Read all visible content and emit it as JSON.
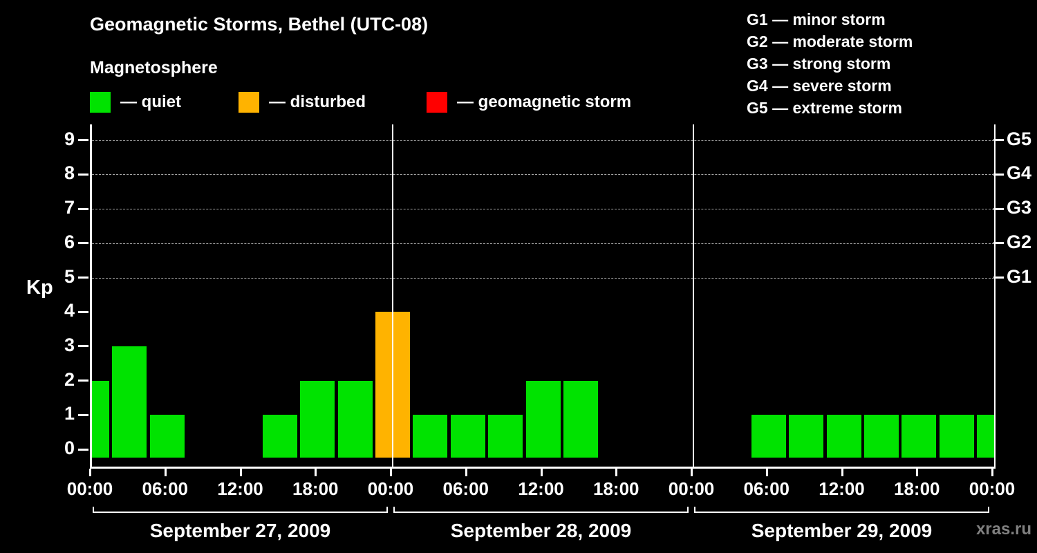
{
  "title": "Geomagnetic Storms, Bethel (UTC-08)",
  "subtitle": "Magnetosphere",
  "watermark": "xras.ru",
  "colors": {
    "quiet": "#00e300",
    "disturbed": "#ffb300",
    "storm": "#ff0000",
    "background": "#000000",
    "foreground": "#ffffff",
    "gridline": "#a8a8a8"
  },
  "legend": {
    "items": [
      {
        "key": "quiet",
        "label": "— quiet"
      },
      {
        "key": "disturbed",
        "label": "— disturbed"
      },
      {
        "key": "storm",
        "label": "— geomagnetic storm"
      }
    ]
  },
  "g_scale": {
    "items": [
      "G1 — minor storm",
      "G2 — moderate storm",
      "G3 — strong storm",
      "G4 — severe storm",
      "G5 — extreme storm"
    ]
  },
  "chart_data": {
    "type": "bar",
    "title": "Geomagnetic Storms, Bethel (UTC-08)",
    "ylabel": "Kp",
    "ylim": [
      -0.5,
      9.5
    ],
    "yticks": [
      0,
      1,
      2,
      3,
      4,
      5,
      6,
      7,
      8,
      9
    ],
    "gridlines": [
      5,
      6,
      7,
      8,
      9
    ],
    "grid_style": "dashed",
    "right_axis": [
      {
        "label": "G1",
        "kp": 5
      },
      {
        "label": "G2",
        "kp": 6
      },
      {
        "label": "G3",
        "kp": 7
      },
      {
        "label": "G4",
        "kp": 8
      },
      {
        "label": "G5",
        "kp": 9
      }
    ],
    "hour_tick_labels": [
      "00:00",
      "06:00",
      "12:00",
      "18:00"
    ],
    "final_tick_label": "00:00",
    "bar_interval_hours": 3,
    "days": [
      {
        "date": "September 27, 2009",
        "bars": [
          {
            "hour": 0,
            "kp": 2,
            "status": "quiet"
          },
          {
            "hour": 3,
            "kp": 3,
            "status": "quiet"
          },
          {
            "hour": 6,
            "kp": 1,
            "status": "quiet"
          },
          {
            "hour": 15,
            "kp": 1,
            "status": "quiet"
          },
          {
            "hour": 18,
            "kp": 2,
            "status": "quiet"
          },
          {
            "hour": 21,
            "kp": 2,
            "status": "quiet"
          }
        ]
      },
      {
        "date": "September 28, 2009",
        "bars": [
          {
            "hour": 0,
            "kp": 4,
            "status": "disturbed"
          },
          {
            "hour": 3,
            "kp": 1,
            "status": "quiet"
          },
          {
            "hour": 6,
            "kp": 1,
            "status": "quiet"
          },
          {
            "hour": 9,
            "kp": 1,
            "status": "quiet"
          },
          {
            "hour": 12,
            "kp": 2,
            "status": "quiet"
          },
          {
            "hour": 15,
            "kp": 2,
            "status": "quiet"
          }
        ]
      },
      {
        "date": "September 29, 2009",
        "bars": [
          {
            "hour": 6,
            "kp": 1,
            "status": "quiet"
          },
          {
            "hour": 9,
            "kp": 1,
            "status": "quiet"
          },
          {
            "hour": 12,
            "kp": 1,
            "status": "quiet"
          },
          {
            "hour": 15,
            "kp": 1,
            "status": "quiet"
          },
          {
            "hour": 18,
            "kp": 1,
            "status": "quiet"
          },
          {
            "hour": 21,
            "kp": 1,
            "status": "quiet"
          },
          {
            "hour": 24,
            "kp": 1,
            "status": "quiet"
          }
        ]
      }
    ]
  }
}
